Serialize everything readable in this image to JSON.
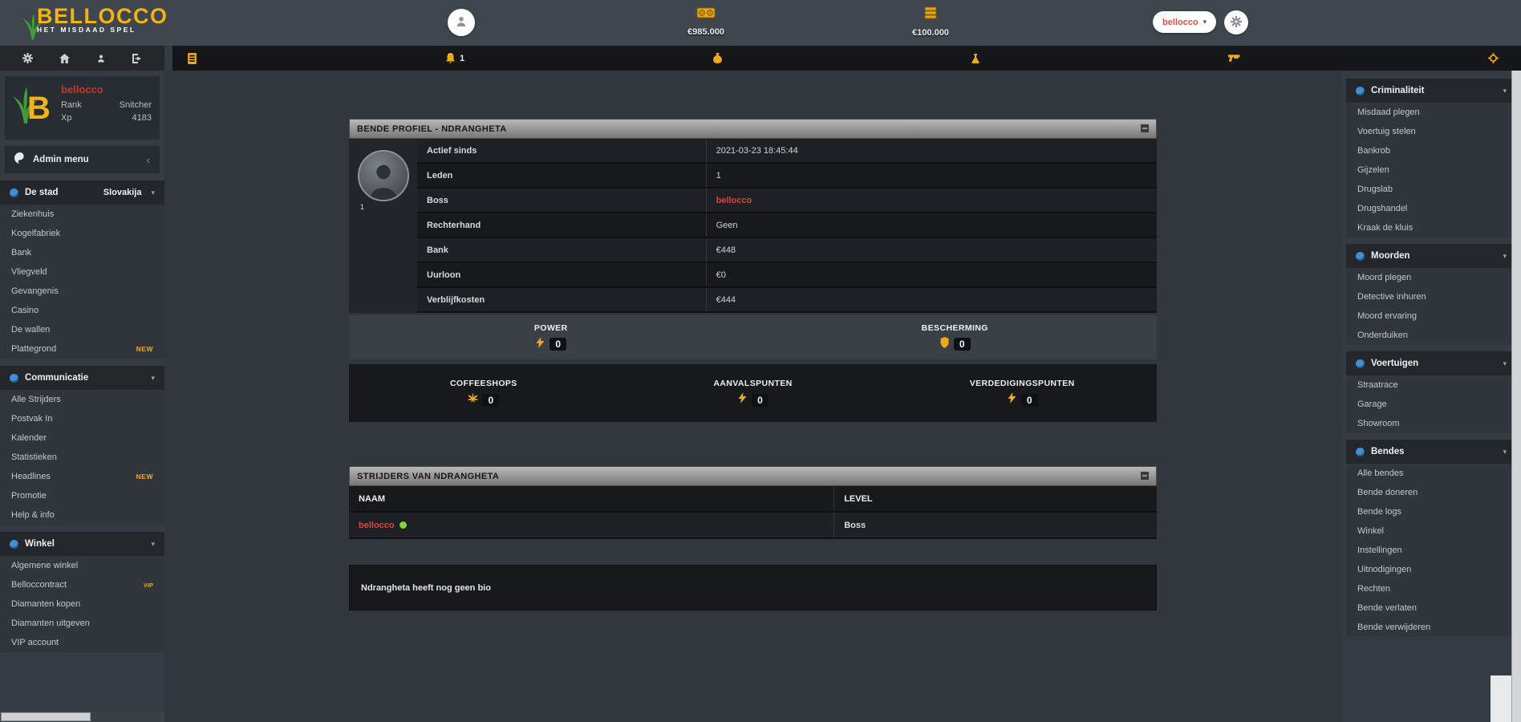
{
  "app": {
    "name": "BELLOCCO",
    "tagline": "HET MISDAAD SPEL"
  },
  "topbar": {
    "cash": "€985.000",
    "bank": "€100.000",
    "user_pill": "bellocco",
    "nav_notification_count": "1"
  },
  "user_card": {
    "name": "bellocco",
    "rank_label": "Rank",
    "rank_value": "Snitcher",
    "xp_label": "Xp",
    "xp_value": "4183"
  },
  "admin_menu": {
    "label": "Admin menu"
  },
  "left_sections": [
    {
      "title": "De stad",
      "extra": "Slovakija",
      "items": [
        {
          "label": "Ziekenhuis"
        },
        {
          "label": "Kogelfabriek"
        },
        {
          "label": "Bank"
        },
        {
          "label": "Vliegveld"
        },
        {
          "label": "Gevangenis"
        },
        {
          "label": "Casino"
        },
        {
          "label": "De wallen"
        },
        {
          "label": "Plattegrond",
          "badge": "NEW"
        }
      ]
    },
    {
      "title": "Communicatie",
      "items": [
        {
          "label": "Alle Strijders"
        },
        {
          "label": "Postvak In"
        },
        {
          "label": "Kalender"
        },
        {
          "label": "Statistieken"
        },
        {
          "label": "Headlines",
          "badge": "NEW"
        },
        {
          "label": "Promotie"
        },
        {
          "label": "Help & info"
        }
      ]
    },
    {
      "title": "Winkel",
      "items": [
        {
          "label": "Algemene winkel"
        },
        {
          "label": "Belloccontract",
          "badge": "VIP"
        },
        {
          "label": "Diamanten kopen"
        },
        {
          "label": "Diamanten uitgeven"
        },
        {
          "label": "VIP account"
        }
      ]
    }
  ],
  "right_sections": [
    {
      "title": "Criminaliteit",
      "items": [
        {
          "label": "Misdaad plegen"
        },
        {
          "label": "Voertuig stelen"
        },
        {
          "label": "Bankrob"
        },
        {
          "label": "Gijzelen"
        },
        {
          "label": "Drugslab"
        },
        {
          "label": "Drugshandel"
        },
        {
          "label": "Kraak de kluis"
        }
      ]
    },
    {
      "title": "Moorden",
      "items": [
        {
          "label": "Moord plegen"
        },
        {
          "label": "Detective inhuren"
        },
        {
          "label": "Moord ervaring"
        },
        {
          "label": "Onderduiken"
        }
      ]
    },
    {
      "title": "Voertuigen",
      "items": [
        {
          "label": "Straatrace"
        },
        {
          "label": "Garage"
        },
        {
          "label": "Showroom"
        }
      ]
    },
    {
      "title": "Bendes",
      "items": [
        {
          "label": "Alle bendes"
        },
        {
          "label": "Bende doneren"
        },
        {
          "label": "Bende logs"
        },
        {
          "label": "Winkel"
        },
        {
          "label": "Instellingen"
        },
        {
          "label": "Uitnodigingen"
        },
        {
          "label": "Rechten"
        },
        {
          "label": "Bende verlaten"
        },
        {
          "label": "Bende verwijderen"
        }
      ]
    }
  ],
  "profile_panel": {
    "title": "BENDE PROFIEL - NDRANGHETA",
    "avatar_badge": "1",
    "rows": [
      {
        "label": "Actief sinds",
        "value": "2021-03-23 18:45:44"
      },
      {
        "label": "Leden",
        "value": "1"
      },
      {
        "label": "Boss",
        "value": "bellocco",
        "style": "link"
      },
      {
        "label": "Rechterhand",
        "value": "Geen"
      },
      {
        "label": "Bank",
        "value": "€448"
      },
      {
        "label": "Uurloon",
        "value": "€0"
      },
      {
        "label": "Verblijfkosten",
        "value": "€444"
      }
    ],
    "stats_row1": [
      {
        "label": "POWER",
        "value": "0",
        "icon": "lightning"
      },
      {
        "label": "BESCHERMING",
        "value": "0",
        "icon": "shield"
      }
    ],
    "stats_row2": [
      {
        "label": "COFFEESHOPS",
        "value": "0",
        "icon": "cannabis"
      },
      {
        "label": "AANVALSPUNTEN",
        "value": "0",
        "icon": "lightning"
      },
      {
        "label": "VERDEDIGINGSPUNTEN",
        "value": "0",
        "icon": "lightning"
      }
    ]
  },
  "members_panel": {
    "title": "STRIJDERS VAN NDRANGHETA",
    "columns": {
      "name": "NAAM",
      "level": "LEVEL"
    },
    "rows": [
      {
        "name": "bellocco",
        "online": true,
        "level": "Boss"
      }
    ]
  },
  "bio_panel": {
    "text": "Ndrangheta heeft nog geen bio"
  },
  "colors": {
    "accent_yellow": "#f2a81d",
    "link_red": "#d9453a",
    "online_green": "#86d432",
    "section_blue": "#3d8fd6"
  }
}
